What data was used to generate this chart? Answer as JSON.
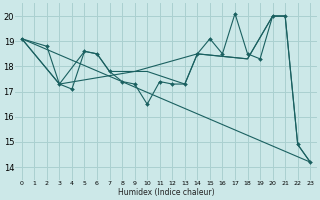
{
  "xlabel": "Humidex (Indice chaleur)",
  "xlim": [
    -0.5,
    23.5
  ],
  "ylim": [
    13.5,
    20.5
  ],
  "yticks": [
    14,
    15,
    16,
    17,
    18,
    19,
    20
  ],
  "xticks": [
    0,
    1,
    2,
    3,
    4,
    5,
    6,
    7,
    8,
    9,
    10,
    11,
    12,
    13,
    14,
    15,
    16,
    17,
    18,
    19,
    20,
    21,
    22,
    23
  ],
  "background_color": "#cce8e8",
  "grid_color": "#aad0d0",
  "line_color": "#1a6060",
  "series": [
    {
      "x": [
        0,
        2,
        3,
        4,
        5,
        6,
        7,
        8,
        9,
        10,
        11,
        12,
        13,
        14,
        15,
        16,
        17,
        18,
        19,
        20,
        21,
        22,
        23
      ],
      "y": [
        19.1,
        18.8,
        17.3,
        17.1,
        18.6,
        18.5,
        17.8,
        17.4,
        17.3,
        16.5,
        17.4,
        17.3,
        17.3,
        18.5,
        19.1,
        18.5,
        20.1,
        18.5,
        18.3,
        20.0,
        20.0,
        14.9,
        14.2
      ],
      "has_marker": true
    },
    {
      "x": [
        0,
        23
      ],
      "y": [
        19.1,
        14.2
      ],
      "has_marker": false
    },
    {
      "x": [
        0,
        3,
        9,
        14,
        18,
        20,
        21
      ],
      "y": [
        19.1,
        17.3,
        17.8,
        18.5,
        18.3,
        20.0,
        20.0
      ],
      "has_marker": false
    },
    {
      "x": [
        0,
        3,
        5,
        6,
        7,
        10,
        13,
        14,
        18,
        20,
        21,
        22,
        23
      ],
      "y": [
        19.1,
        17.3,
        18.6,
        18.5,
        17.8,
        17.8,
        17.3,
        18.5,
        18.3,
        20.0,
        20.0,
        14.9,
        14.2
      ],
      "has_marker": false
    }
  ]
}
